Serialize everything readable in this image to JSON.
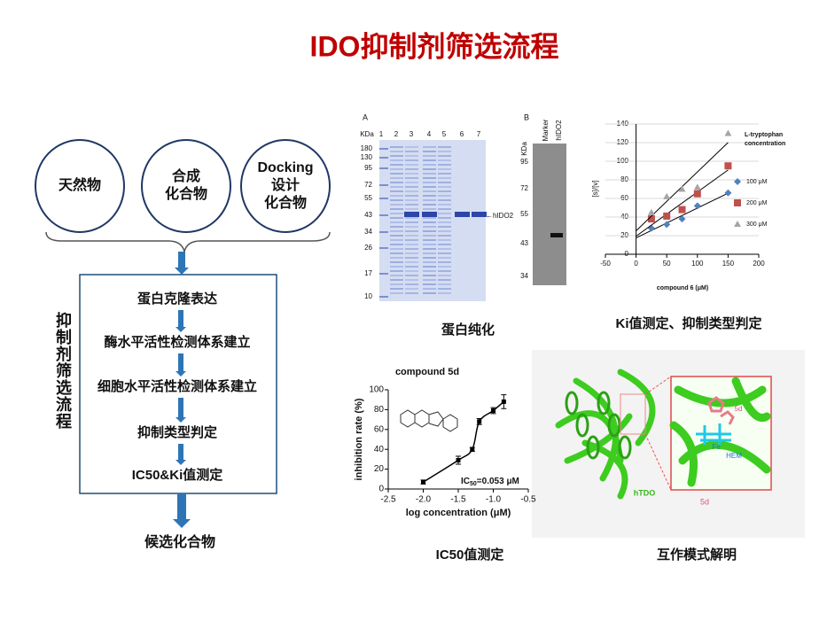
{
  "title": "IDO抑制剂筛选流程",
  "sources": [
    [
      "天然物"
    ],
    [
      "合成",
      "化合物"
    ],
    [
      "Docking",
      "设计",
      "化合物"
    ]
  ],
  "steps": [
    "蛋白克隆表达",
    "酶水平活性检测体系建立",
    "细胞水平活性检测体系建立",
    "抑制类型判定",
    "IC50&Ki值测定"
  ],
  "side_label": "抑制剂筛选流程",
  "result": "候选化合物",
  "purification": {
    "caption": "蛋白纯化",
    "gel_a": {
      "label": "A",
      "unit": "KDa",
      "lanes": [
        "1",
        "2",
        "3",
        "4",
        "5",
        "6",
        "7"
      ],
      "ladder": [
        "180",
        "130",
        "95",
        "72",
        "55",
        "43",
        "34",
        "26",
        "17",
        "10"
      ],
      "band": "←hIDO2"
    },
    "gel_b": {
      "label": "B",
      "unit": "KDa",
      "lanes": [
        "Marker",
        "hIDO2"
      ],
      "ladder": [
        "95",
        "72",
        "55",
        "43",
        "34"
      ]
    }
  },
  "ki_caption": "Ki值测定、抑制类型判定",
  "ic50_caption": "IC50值测定",
  "docking": {
    "caption": "互作模式解明",
    "protein": "hTDO",
    "ligand": "5d",
    "inset_ligand": "5d",
    "iron": "Fe",
    "heme": "HEM"
  },
  "chart_data": [
    {
      "type": "scatter",
      "xlim": [
        -50,
        200
      ],
      "xticks": [
        -50,
        0,
        50,
        100,
        150,
        200
      ],
      "ylim": [
        0,
        140
      ],
      "yticks": [
        0,
        20,
        40,
        60,
        80,
        100,
        120,
        140
      ],
      "grid": true,
      "trendlines": true,
      "x_label": "compound 6 (μM)",
      "y_label": "[s]/[v]",
      "legend_title": [
        "L-tryptophan",
        "concentration"
      ],
      "x": [
        25,
        50,
        75,
        100,
        150
      ],
      "series": [
        {
          "name": "100 μM",
          "color": "#4f81bd",
          "marker": "diamond",
          "values": [
            28,
            32,
            38,
            52,
            66
          ]
        },
        {
          "name": "200 μM",
          "color": "#c0504d",
          "marker": "square",
          "values": [
            38,
            41,
            48,
            65,
            95
          ]
        },
        {
          "name": "300 μM",
          "color": "#a5a5a5",
          "marker": "triangle",
          "values": [
            45,
            62,
            70,
            72,
            130
          ]
        }
      ]
    },
    {
      "type": "line",
      "title": "compound 5d",
      "xlim": [
        -2.5,
        -0.5
      ],
      "xticks": [
        -2.5,
        {
          "value": -2.0,
          "label": "-2.0"
        },
        -1.5,
        {
          "value": -1.0,
          "label": "-1.0"
        },
        -0.5
      ],
      "ylim": [
        0,
        100
      ],
      "yticks": [
        0,
        20,
        40,
        60,
        80,
        100
      ],
      "x_label": "log concentration (μM)",
      "y_label": "inhibition rate (%)",
      "annotation": [
        "IC",
        "50",
        "=0.053 μM"
      ],
      "x": [
        -2.0,
        -1.5,
        -1.3,
        -1.2,
        -1.0,
        -0.85
      ],
      "values": [
        7,
        29,
        40,
        68,
        79,
        88
      ],
      "errors": [
        2,
        4,
        2,
        3,
        3,
        7
      ],
      "color": "#000000"
    }
  ]
}
